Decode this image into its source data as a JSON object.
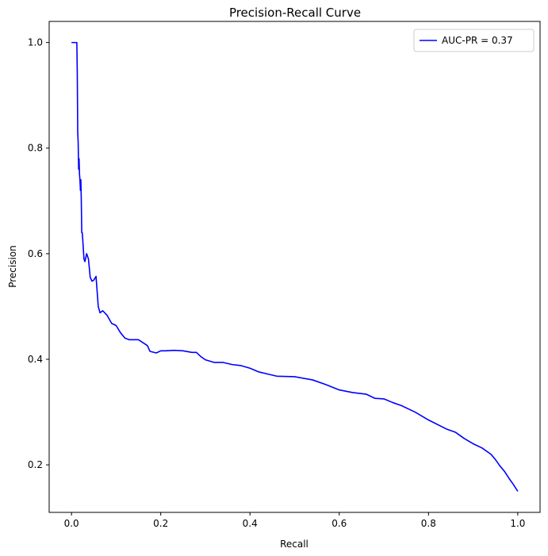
{
  "chart_data": {
    "type": "line",
    "title": "Precision-Recall Curve",
    "xlabel": "Recall",
    "ylabel": "Precision",
    "xlim": [
      -0.05,
      1.05
    ],
    "ylim": [
      0.11,
      1.04
    ],
    "xticks": [
      "0.0",
      "0.2",
      "0.4",
      "0.6",
      "0.8",
      "1.0"
    ],
    "yticks": [
      "0.2",
      "0.4",
      "0.6",
      "0.8",
      "1.0"
    ],
    "grid": false,
    "legend_position": "top-right",
    "series": [
      {
        "name": "AUC-PR = 0.37",
        "color": "#0000ff",
        "x": [
          0.0,
          0.012,
          0.013,
          0.014,
          0.015,
          0.016,
          0.017,
          0.018,
          0.019,
          0.02,
          0.021,
          0.022,
          0.023,
          0.024,
          0.025,
          0.028,
          0.03,
          0.034,
          0.038,
          0.042,
          0.046,
          0.05,
          0.055,
          0.06,
          0.064,
          0.07,
          0.08,
          0.09,
          0.1,
          0.11,
          0.12,
          0.13,
          0.15,
          0.17,
          0.176,
          0.19,
          0.2,
          0.21,
          0.23,
          0.25,
          0.27,
          0.28,
          0.29,
          0.3,
          0.32,
          0.34,
          0.36,
          0.38,
          0.4,
          0.42,
          0.44,
          0.46,
          0.5,
          0.54,
          0.57,
          0.6,
          0.63,
          0.66,
          0.68,
          0.7,
          0.72,
          0.74,
          0.77,
          0.8,
          0.84,
          0.86,
          0.88,
          0.9,
          0.92,
          0.94,
          0.95,
          0.96,
          0.97,
          0.98,
          0.99,
          1.0
        ],
        "y": [
          1.0,
          1.0,
          0.94,
          0.83,
          0.81,
          0.76,
          0.78,
          0.75,
          0.74,
          0.72,
          0.74,
          0.7,
          0.64,
          0.64,
          0.63,
          0.59,
          0.585,
          0.6,
          0.59,
          0.555,
          0.548,
          0.55,
          0.557,
          0.5,
          0.488,
          0.492,
          0.483,
          0.468,
          0.464,
          0.45,
          0.44,
          0.437,
          0.437,
          0.426,
          0.415,
          0.412,
          0.416,
          0.416,
          0.417,
          0.416,
          0.413,
          0.413,
          0.405,
          0.399,
          0.394,
          0.394,
          0.39,
          0.388,
          0.383,
          0.376,
          0.372,
          0.368,
          0.367,
          0.361,
          0.352,
          0.342,
          0.337,
          0.334,
          0.326,
          0.325,
          0.318,
          0.312,
          0.3,
          0.285,
          0.268,
          0.262,
          0.25,
          0.24,
          0.232,
          0.22,
          0.21,
          0.198,
          0.188,
          0.175,
          0.163,
          0.15
        ]
      }
    ]
  }
}
